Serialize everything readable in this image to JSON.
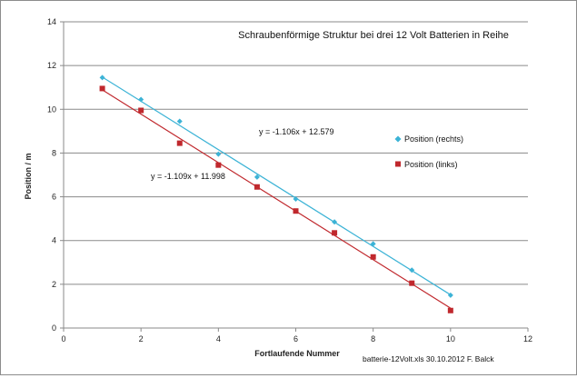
{
  "chart_data": {
    "type": "scatter",
    "title": "Schraubenförmige  Struktur bei drei 12 Volt Batterien in Reihe",
    "xlabel": "Fortlaufende Nummer",
    "ylabel": "Position / m",
    "xlim": [
      0,
      12
    ],
    "ylim": [
      0,
      14
    ],
    "xticks": [
      0,
      2,
      4,
      6,
      8,
      10,
      12
    ],
    "yticks": [
      0,
      2,
      4,
      6,
      8,
      10,
      12,
      14
    ],
    "grid": "horizontal",
    "legend_position": "right",
    "series": [
      {
        "name": "Position (rechts)",
        "color": "#3cb3d6",
        "marker": "diamond",
        "x": [
          1,
          2,
          3,
          4,
          5,
          6,
          7,
          8,
          9,
          10
        ],
        "y": [
          11.45,
          10.45,
          9.45,
          7.95,
          6.9,
          5.9,
          4.85,
          3.85,
          2.65,
          1.5
        ],
        "trend": {
          "slope": -1.106,
          "intercept": 12.579,
          "equation": "y = -1.106x + 12.579"
        }
      },
      {
        "name": "Position (links)",
        "color": "#c0282d",
        "marker": "square",
        "x": [
          1,
          2,
          3,
          4,
          5,
          6,
          7,
          8,
          9,
          10
        ],
        "y": [
          10.95,
          9.95,
          8.45,
          7.45,
          6.45,
          5.35,
          4.35,
          3.25,
          2.05,
          0.8
        ],
        "trend": {
          "slope": -1.109,
          "intercept": 11.998,
          "equation": "y = -1.109x + 11.998"
        }
      }
    ],
    "footer_note": "batterie-12Volt.xls  30.10.2012  F. Balck"
  }
}
